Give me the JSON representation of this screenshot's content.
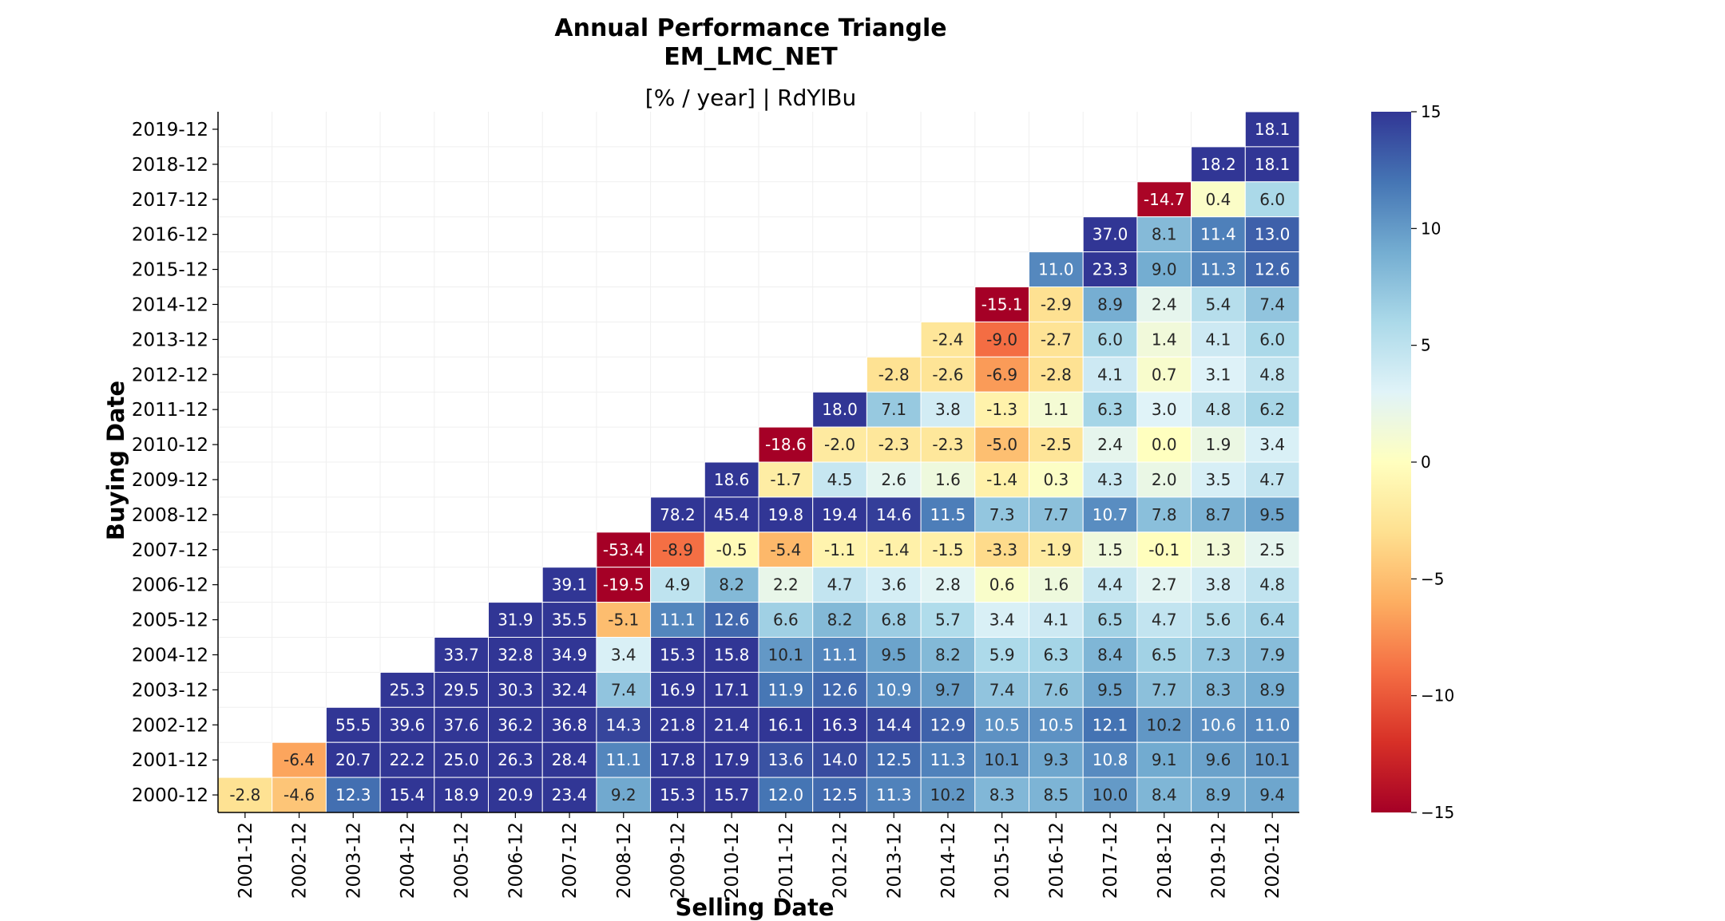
{
  "chart_data": {
    "type": "heatmap",
    "title": "Annual Performance Triangle",
    "title_line2": "EM_LMC_NET",
    "subtitle": "[% / year] | RdYlBu",
    "xlabel": "Selling Date",
    "ylabel": "Buying Date",
    "colormap": "RdYlBu",
    "vmin": -15,
    "vmax": 15,
    "colorbar_ticks": [
      15,
      10,
      5,
      0,
      -5,
      -10,
      -15
    ],
    "colorbar_tick_labels": [
      "15",
      "10",
      "5",
      "0",
      "−5",
      "−10",
      "−15"
    ],
    "x_categories": [
      "2001-12",
      "2002-12",
      "2003-12",
      "2004-12",
      "2005-12",
      "2006-12",
      "2007-12",
      "2008-12",
      "2009-12",
      "2010-12",
      "2011-12",
      "2012-12",
      "2013-12",
      "2014-12",
      "2015-12",
      "2016-12",
      "2017-12",
      "2018-12",
      "2019-12",
      "2020-12"
    ],
    "y_categories": [
      "2019-12",
      "2018-12",
      "2017-12",
      "2016-12",
      "2015-12",
      "2014-12",
      "2013-12",
      "2012-12",
      "2011-12",
      "2010-12",
      "2009-12",
      "2008-12",
      "2007-12",
      "2006-12",
      "2005-12",
      "2004-12",
      "2003-12",
      "2002-12",
      "2001-12",
      "2000-12"
    ],
    "values": [
      [
        null,
        null,
        null,
        null,
        null,
        null,
        null,
        null,
        null,
        null,
        null,
        null,
        null,
        null,
        null,
        null,
        null,
        null,
        null,
        18.1
      ],
      [
        null,
        null,
        null,
        null,
        null,
        null,
        null,
        null,
        null,
        null,
        null,
        null,
        null,
        null,
        null,
        null,
        null,
        null,
        18.2,
        18.1
      ],
      [
        null,
        null,
        null,
        null,
        null,
        null,
        null,
        null,
        null,
        null,
        null,
        null,
        null,
        null,
        null,
        null,
        null,
        -14.7,
        0.4,
        6.0
      ],
      [
        null,
        null,
        null,
        null,
        null,
        null,
        null,
        null,
        null,
        null,
        null,
        null,
        null,
        null,
        null,
        null,
        37.0,
        8.1,
        11.4,
        13.0
      ],
      [
        null,
        null,
        null,
        null,
        null,
        null,
        null,
        null,
        null,
        null,
        null,
        null,
        null,
        null,
        null,
        11.0,
        23.3,
        9.0,
        11.3,
        12.6
      ],
      [
        null,
        null,
        null,
        null,
        null,
        null,
        null,
        null,
        null,
        null,
        null,
        null,
        null,
        null,
        -15.1,
        -2.9,
        8.9,
        2.4,
        5.4,
        7.4
      ],
      [
        null,
        null,
        null,
        null,
        null,
        null,
        null,
        null,
        null,
        null,
        null,
        null,
        null,
        -2.4,
        -9.0,
        -2.7,
        6.0,
        1.4,
        4.1,
        6.0
      ],
      [
        null,
        null,
        null,
        null,
        null,
        null,
        null,
        null,
        null,
        null,
        null,
        null,
        -2.8,
        -2.6,
        -6.9,
        -2.8,
        4.1,
        0.7,
        3.1,
        4.8
      ],
      [
        null,
        null,
        null,
        null,
        null,
        null,
        null,
        null,
        null,
        null,
        null,
        18.0,
        7.1,
        3.8,
        -1.3,
        1.1,
        6.3,
        3.0,
        4.8,
        6.2
      ],
      [
        null,
        null,
        null,
        null,
        null,
        null,
        null,
        null,
        null,
        null,
        -18.6,
        -2.0,
        -2.3,
        -2.3,
        -5.0,
        -2.5,
        2.4,
        0.0,
        1.9,
        3.4
      ],
      [
        null,
        null,
        null,
        null,
        null,
        null,
        null,
        null,
        null,
        18.6,
        -1.7,
        4.5,
        2.6,
        1.6,
        -1.4,
        0.3,
        4.3,
        2.0,
        3.5,
        4.7
      ],
      [
        null,
        null,
        null,
        null,
        null,
        null,
        null,
        null,
        78.2,
        45.4,
        19.8,
        19.4,
        14.6,
        11.5,
        7.3,
        7.7,
        10.7,
        7.8,
        8.7,
        9.5
      ],
      [
        null,
        null,
        null,
        null,
        null,
        null,
        null,
        -53.4,
        -8.9,
        -0.5,
        -5.4,
        -1.1,
        -1.4,
        -1.5,
        -3.3,
        -1.9,
        1.5,
        -0.1,
        1.3,
        2.5
      ],
      [
        null,
        null,
        null,
        null,
        null,
        null,
        39.1,
        -19.5,
        4.9,
        8.2,
        2.2,
        4.7,
        3.6,
        2.8,
        0.6,
        1.6,
        4.4,
        2.7,
        3.8,
        4.8
      ],
      [
        null,
        null,
        null,
        null,
        null,
        31.9,
        35.5,
        -5.1,
        11.1,
        12.6,
        6.6,
        8.2,
        6.8,
        5.7,
        3.4,
        4.1,
        6.5,
        4.7,
        5.6,
        6.4
      ],
      [
        null,
        null,
        null,
        null,
        33.7,
        32.8,
        34.9,
        3.4,
        15.3,
        15.8,
        10.1,
        11.1,
        9.5,
        8.2,
        5.9,
        6.3,
        8.4,
        6.5,
        7.3,
        7.9
      ],
      [
        null,
        null,
        null,
        25.3,
        29.5,
        30.3,
        32.4,
        7.4,
        16.9,
        17.1,
        11.9,
        12.6,
        10.9,
        9.7,
        7.4,
        7.6,
        9.5,
        7.7,
        8.3,
        8.9
      ],
      [
        null,
        null,
        55.5,
        39.6,
        37.6,
        36.2,
        36.8,
        14.3,
        21.8,
        21.4,
        16.1,
        16.3,
        14.4,
        12.9,
        10.5,
        10.5,
        12.1,
        10.2,
        10.6,
        11.0
      ],
      [
        null,
        -6.4,
        20.7,
        22.2,
        25.0,
        26.3,
        28.4,
        11.1,
        17.8,
        17.9,
        13.6,
        14.0,
        12.5,
        11.3,
        10.1,
        9.3,
        10.8,
        9.1,
        9.6,
        10.1
      ],
      [
        -2.8,
        -4.6,
        12.3,
        15.4,
        18.9,
        20.9,
        23.4,
        9.2,
        15.3,
        15.7,
        12.0,
        12.5,
        11.3,
        10.2,
        8.3,
        8.5,
        10.0,
        8.4,
        8.9,
        9.4
      ]
    ]
  }
}
